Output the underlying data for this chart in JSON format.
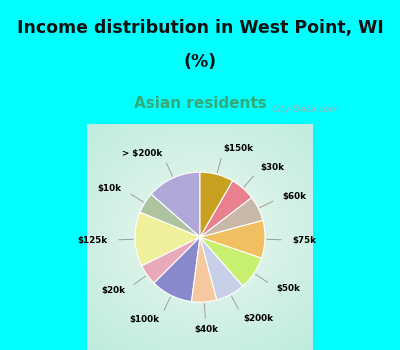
{
  "title_line1": "Income distribution in West Point, WI",
  "title_line2": "(%)",
  "subtitle": "Asian residents",
  "labels": [
    "> $200k",
    "$10k",
    "$125k",
    "$20k",
    "$100k",
    "$40k",
    "$200k",
    "$50k",
    "$75k",
    "$60k",
    "$30k",
    "$150k"
  ],
  "values": [
    13,
    5,
    13,
    5,
    10,
    6,
    7,
    8,
    9,
    6,
    6,
    8
  ],
  "colors": [
    "#b0a8d8",
    "#aec4a0",
    "#f0f09a",
    "#e8aabb",
    "#8888cc",
    "#f5c8a0",
    "#c8d0e8",
    "#c8f070",
    "#f0c060",
    "#c8b8a8",
    "#e88090",
    "#c8a020"
  ],
  "bg_color": "#00FFFF",
  "chart_bg_outer": "#b0e8d8",
  "chart_bg_inner": "#e8f8f0",
  "watermark": "City-Data.com",
  "start_angle": 90
}
